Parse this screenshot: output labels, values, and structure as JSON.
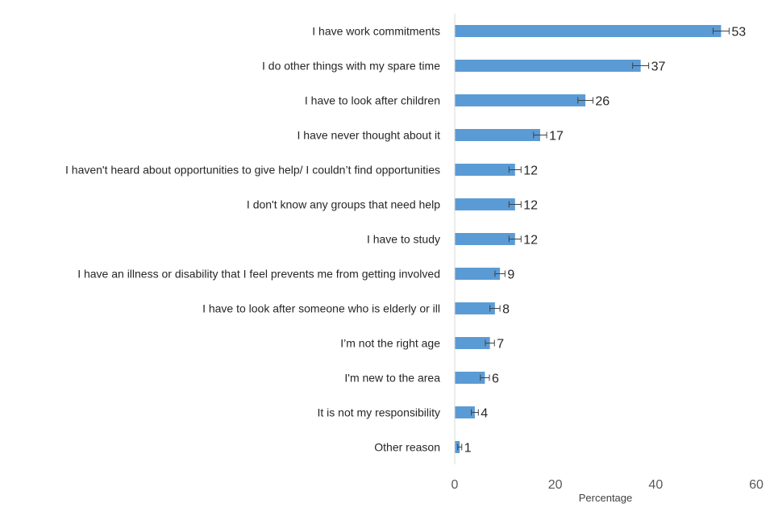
{
  "chart_data": {
    "type": "bar",
    "orientation": "horizontal",
    "categories": [
      "I have work commitments",
      "I do other things with my spare time",
      "I have to look after children",
      "I have never thought about it",
      "I haven't heard about opportunities  to give help/ I couldn’t find opportunities",
      "I don't know any groups that need help",
      "I have to study",
      "I have an illness or disability that I feel prevents me from getting involved",
      "I have to look after someone who is elderly or ill",
      "I’m not the right age",
      "I'm new to the area",
      "It is not my responsibility",
      "Other reason"
    ],
    "values": [
      53,
      37,
      26,
      17,
      12,
      12,
      12,
      9,
      8,
      7,
      6,
      4,
      1
    ],
    "error_bars": [
      1.6,
      1.6,
      1.5,
      1.3,
      1.2,
      1.2,
      1.2,
      1.0,
      1.0,
      0.9,
      0.9,
      0.7,
      0.4
    ],
    "value_labels": [
      "53",
      "37",
      "26",
      "17",
      "12",
      "12",
      "12",
      "9",
      "8",
      "7",
      "6",
      "4",
      "1"
    ],
    "xlabel": "Percentage",
    "xlim": [
      0,
      60
    ],
    "x_ticks": [
      0,
      20,
      40,
      60
    ],
    "x_tick_labels": [
      "0",
      "20",
      "40",
      "60"
    ],
    "grid": false,
    "legend": "none",
    "colors": {
      "bar": "#5b9bd5",
      "axis": "#d9d9d9",
      "error": "#404040"
    }
  }
}
